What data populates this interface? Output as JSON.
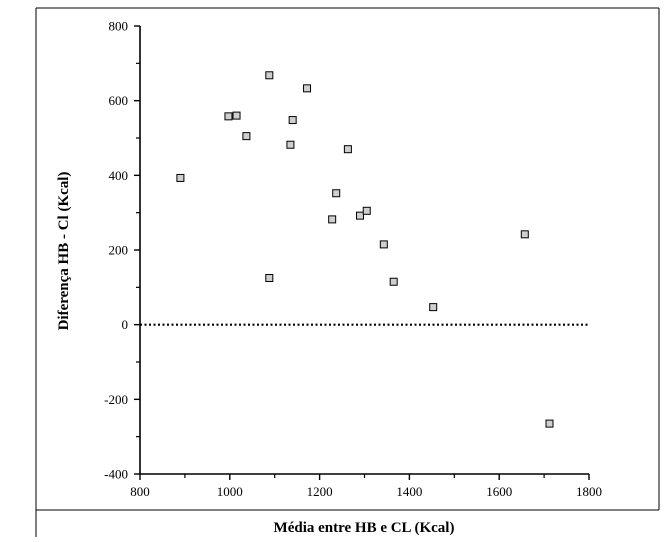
{
  "chart_data": {
    "type": "scatter",
    "xlabel": "Média entre HB e CL (Kcal)",
    "ylabel": "Diferença HB - Cl (Kcal)",
    "xlim": [
      800,
      1800
    ],
    "ylim": [
      -400,
      800
    ],
    "x_ticks": [
      800,
      1000,
      1200,
      1400,
      1600,
      1800
    ],
    "y_ticks": [
      -400,
      -200,
      0,
      200,
      400,
      600,
      800
    ],
    "reference_line": {
      "y": 0,
      "style": "dotted"
    },
    "grid": false,
    "marker": {
      "shape": "square",
      "fill": "#cfcfcf",
      "stroke": "#000000"
    },
    "points": [
      {
        "x": 890,
        "y": 393
      },
      {
        "x": 997,
        "y": 558
      },
      {
        "x": 1015,
        "y": 560
      },
      {
        "x": 1037,
        "y": 505
      },
      {
        "x": 1088,
        "y": 668
      },
      {
        "x": 1088,
        "y": 125
      },
      {
        "x": 1135,
        "y": 482
      },
      {
        "x": 1140,
        "y": 548
      },
      {
        "x": 1172,
        "y": 633
      },
      {
        "x": 1228,
        "y": 282
      },
      {
        "x": 1237,
        "y": 352
      },
      {
        "x": 1263,
        "y": 470
      },
      {
        "x": 1290,
        "y": 292
      },
      {
        "x": 1305,
        "y": 305
      },
      {
        "x": 1343,
        "y": 215
      },
      {
        "x": 1365,
        "y": 115
      },
      {
        "x": 1453,
        "y": 47
      },
      {
        "x": 1657,
        "y": 242
      },
      {
        "x": 1712,
        "y": -265
      }
    ]
  }
}
